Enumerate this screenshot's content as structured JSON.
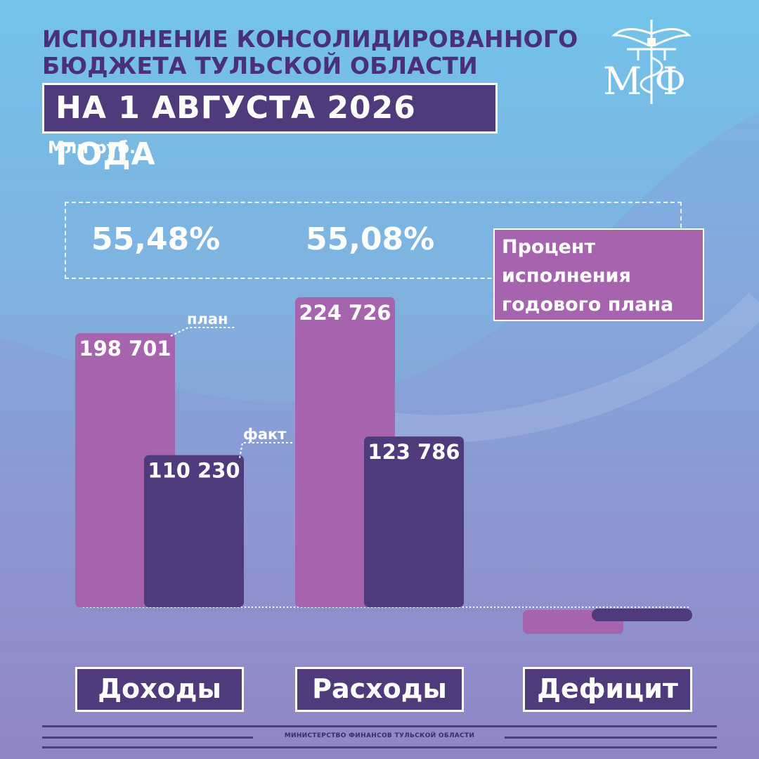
{
  "title": {
    "line1": "ИСПОЛНЕНИЕ КОНСОЛИДИРОВАННОГО",
    "line2": "БЮДЖЕТА ТУЛЬСКОЙ ОБЛАСТИ",
    "date": "НА 1 АВГУСТА 2026 ГОДА",
    "unit": "Млн руб."
  },
  "logo": {
    "text": "МФ",
    "icon": "caduceus-icon"
  },
  "percentages": {
    "income": "55,48%",
    "expense": "55,08%"
  },
  "legend": {
    "line1": "Процент",
    "line2": "исполнения",
    "line3": "годового плана"
  },
  "annotations": {
    "plan": "план",
    "fact": "факт"
  },
  "colors": {
    "plan": "#a564ad",
    "fact": "#4f3a7b",
    "title": "#4a2f7a"
  },
  "chart_data": {
    "type": "bar",
    "categories": [
      "Доходы",
      "Расходы",
      "Дефицит"
    ],
    "series": [
      {
        "name": "план",
        "values": [
          198701,
          224726,
          null
        ],
        "labels": [
          "198 701",
          "224 726",
          ""
        ]
      },
      {
        "name": "факт",
        "values": [
          110230,
          123786,
          null
        ],
        "labels": [
          "110 230",
          "123 786",
          ""
        ]
      }
    ],
    "unit": "Млн руб.",
    "grid": false
  },
  "footer": "МИНИСТЕРСТВО ФИНАНСОВ ТУЛЬСКОЙ ОБЛАСТИ"
}
